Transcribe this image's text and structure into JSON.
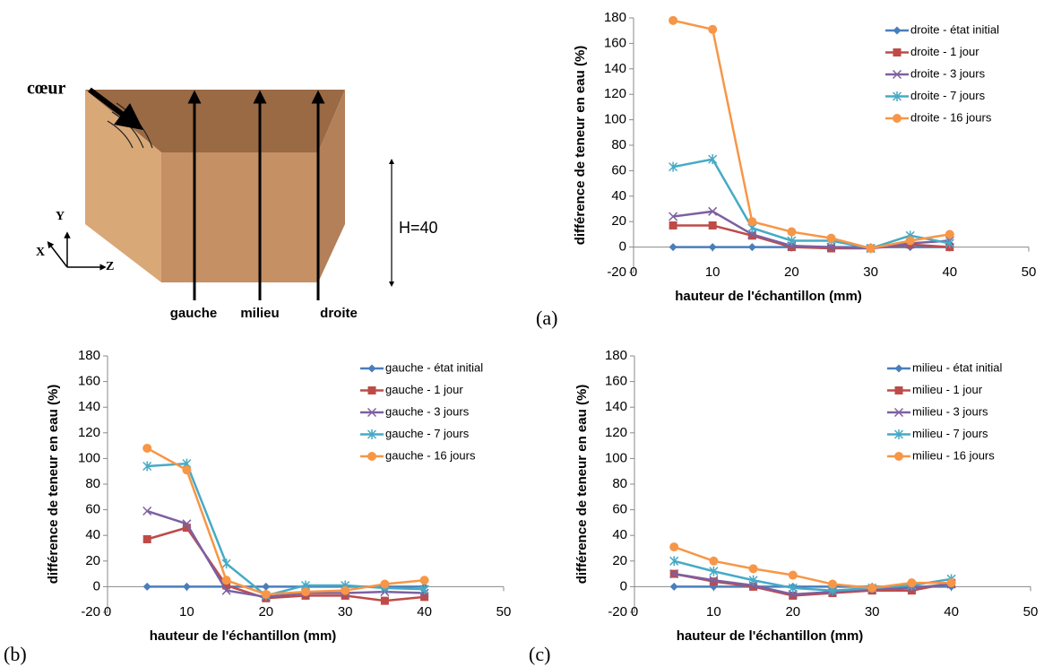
{
  "diagram": {
    "coeur": "cœur",
    "gauche": "gauche",
    "milieu": "milieu",
    "droite": "droite",
    "height": "H=40",
    "axis_x": "X",
    "axis_y": "Y",
    "axis_z": "Z"
  },
  "panel_labels": [
    "(a)",
    "(b)",
    "(c)"
  ],
  "chart_data": [
    {
      "type": "line",
      "x_label": "hauteur de l'échantillon (mm)",
      "y_label": "différence de teneur en eau (%)",
      "x": [
        5,
        10,
        15,
        20,
        25,
        30,
        35,
        40
      ],
      "xlim": [
        0,
        50
      ],
      "xticks": [
        0,
        10,
        20,
        30,
        40,
        50
      ],
      "ylim": [
        -20,
        180
      ],
      "yticks": [
        -20,
        0,
        20,
        40,
        60,
        80,
        100,
        120,
        140,
        160,
        180
      ],
      "grid": false,
      "legend": "upper right",
      "series": [
        {
          "name": "droite - état initial",
          "color": "#4a7ebb",
          "marker": "diamond",
          "values": [
            0,
            0,
            0,
            0,
            0,
            0,
            0,
            0
          ]
        },
        {
          "name": "droite - 1 jour",
          "color": "#be4b48",
          "marker": "square",
          "values": [
            17,
            17,
            9,
            0,
            -1,
            -1,
            2,
            0
          ]
        },
        {
          "name": "droite - 3 jours",
          "color": "#7d60a0",
          "marker": "x",
          "values": [
            24,
            28,
            10,
            1,
            0,
            -1,
            3,
            5
          ]
        },
        {
          "name": "droite - 7 jours",
          "color": "#46aac5",
          "marker": "star",
          "values": [
            63,
            69,
            15,
            5,
            5,
            -1,
            9,
            3
          ]
        },
        {
          "name": "droite - 16 jours",
          "color": "#f79646",
          "marker": "circle",
          "values": [
            178,
            171,
            20,
            12,
            7,
            -1,
            5,
            10
          ]
        }
      ]
    },
    {
      "type": "line",
      "x_label": "hauteur de l'échantillon (mm)",
      "y_label": "différence de teneur en eau (%)",
      "x": [
        5,
        10,
        15,
        20,
        25,
        30,
        35,
        40
      ],
      "xlim": [
        0,
        50
      ],
      "xticks": [
        0,
        10,
        20,
        30,
        40,
        50
      ],
      "ylim": [
        -20,
        180
      ],
      "yticks": [
        -20,
        0,
        20,
        40,
        60,
        80,
        100,
        120,
        140,
        160,
        180
      ],
      "grid": false,
      "legend": "upper right",
      "series": [
        {
          "name": "gauche - état initial",
          "color": "#4a7ebb",
          "marker": "diamond",
          "values": [
            0,
            0,
            0,
            0,
            0,
            0,
            0,
            0
          ]
        },
        {
          "name": "gauche - 1 jour",
          "color": "#be4b48",
          "marker": "square",
          "values": [
            37,
            46,
            1,
            -9,
            -7,
            -7,
            -11,
            -8
          ]
        },
        {
          "name": "gauche - 3 jours",
          "color": "#7d60a0",
          "marker": "x",
          "values": [
            59,
            49,
            -3,
            -8,
            -5,
            -5,
            -4,
            -5
          ]
        },
        {
          "name": "gauche - 7 jours",
          "color": "#46aac5",
          "marker": "star",
          "values": [
            94,
            96,
            18,
            -7,
            1,
            1,
            -1,
            -2
          ]
        },
        {
          "name": "gauche - 16 jours",
          "color": "#f79646",
          "marker": "circle",
          "values": [
            108,
            91,
            5,
            -6,
            -4,
            -3,
            2,
            5
          ]
        }
      ]
    },
    {
      "type": "line",
      "x_label": "hauteur de l'échantillon (mm)",
      "y_label": "différence de teneur en eau (%)",
      "x": [
        5,
        10,
        15,
        20,
        25,
        30,
        35,
        40
      ],
      "xlim": [
        0,
        50
      ],
      "xticks": [
        0,
        10,
        20,
        30,
        40,
        50
      ],
      "ylim": [
        -20,
        180
      ],
      "yticks": [
        -20,
        0,
        20,
        40,
        60,
        80,
        100,
        120,
        140,
        160,
        180
      ],
      "grid": false,
      "legend": "upper right",
      "series": [
        {
          "name": "milieu - état initial",
          "color": "#4a7ebb",
          "marker": "diamond",
          "values": [
            0,
            0,
            0,
            0,
            0,
            0,
            0,
            0
          ]
        },
        {
          "name": "milieu - 1 jour",
          "color": "#be4b48",
          "marker": "square",
          "values": [
            10,
            4,
            0,
            -7,
            -5,
            -3,
            -3,
            3
          ]
        },
        {
          "name": "milieu - 3 jours",
          "color": "#7d60a0",
          "marker": "x",
          "values": [
            10,
            5,
            1,
            -6,
            -4,
            -2,
            -1,
            2
          ]
        },
        {
          "name": "milieu - 7 jours",
          "color": "#46aac5",
          "marker": "star",
          "values": [
            20,
            12,
            5,
            -1,
            -3,
            -1,
            1,
            6
          ]
        },
        {
          "name": "milieu - 16 jours",
          "color": "#f79646",
          "marker": "circle",
          "values": [
            31,
            20,
            14,
            9,
            2,
            -1,
            3,
            3
          ]
        }
      ]
    }
  ]
}
